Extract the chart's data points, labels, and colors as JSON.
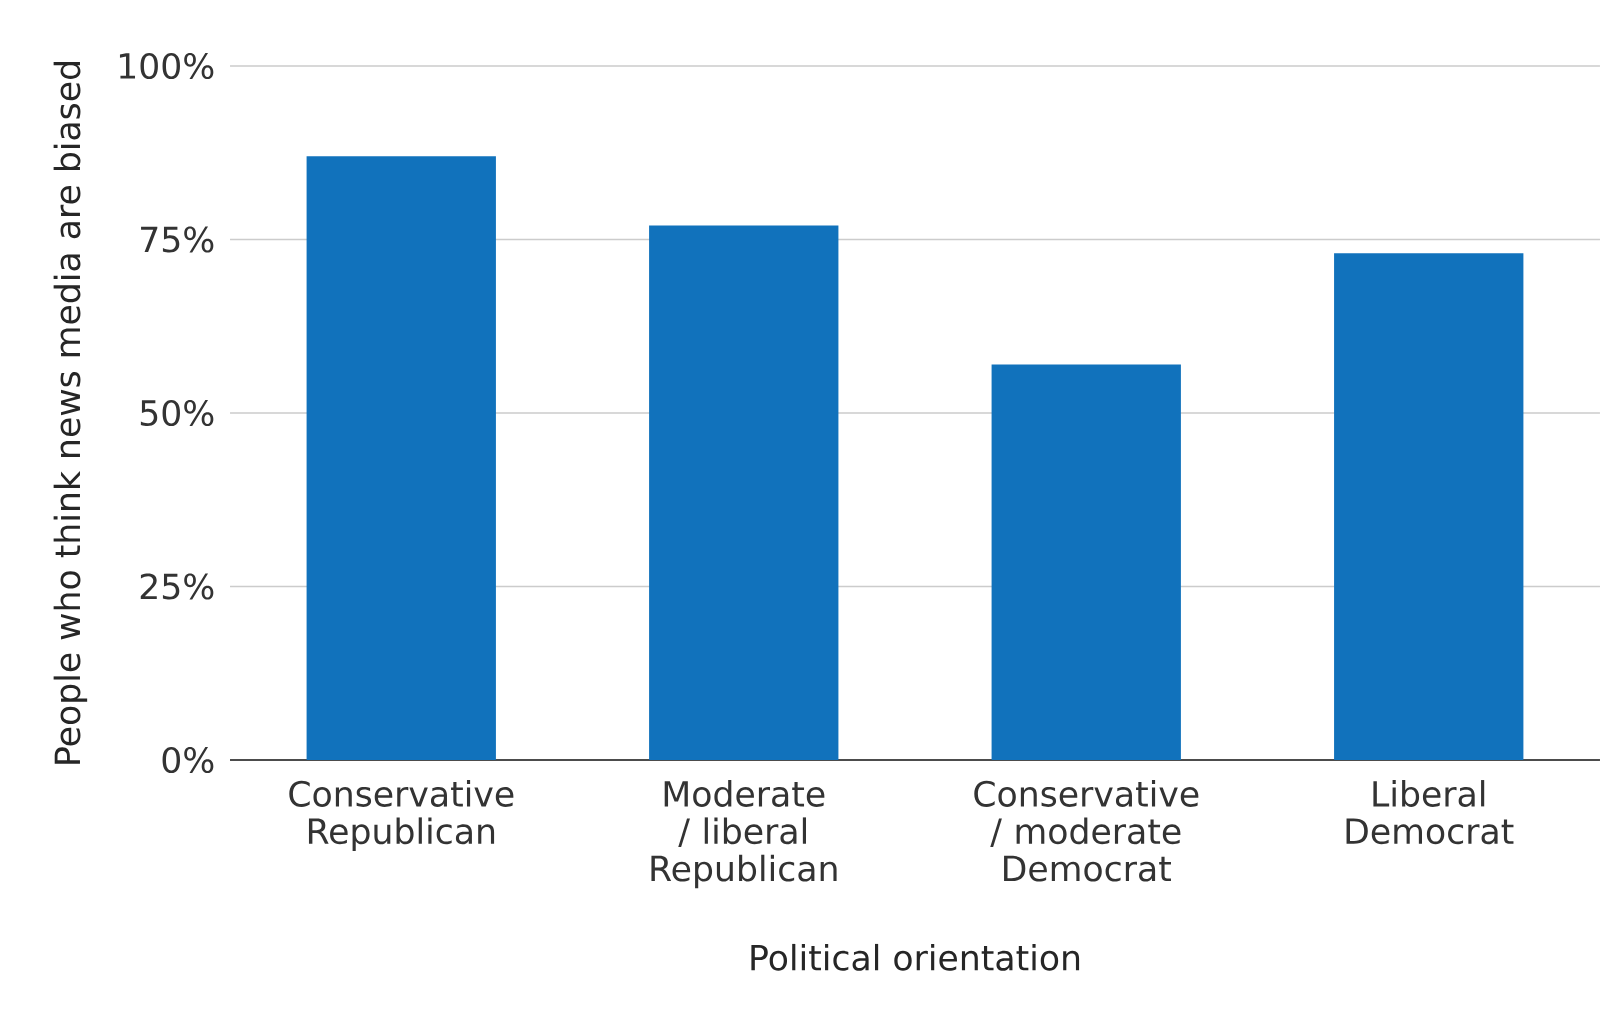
{
  "chart_data": {
    "type": "bar",
    "xlabel": "Political orientation",
    "ylabel": "People who think news media are biased",
    "categories": [
      "Conservative Republican",
      "Moderate / liberal Republican",
      "Conservative / moderate Democrat",
      "Liberal Democrat"
    ],
    "values": [
      87,
      77,
      57,
      73
    ],
    "color": "#1172bc",
    "ylim": [
      0,
      100
    ],
    "yticks": [
      {
        "value": 0,
        "label": "0%"
      },
      {
        "value": 25,
        "label": "25%"
      },
      {
        "value": 50,
        "label": "50%"
      },
      {
        "value": 75,
        "label": "75%"
      },
      {
        "value": 100,
        "label": "100%"
      }
    ],
    "grid": "y"
  }
}
